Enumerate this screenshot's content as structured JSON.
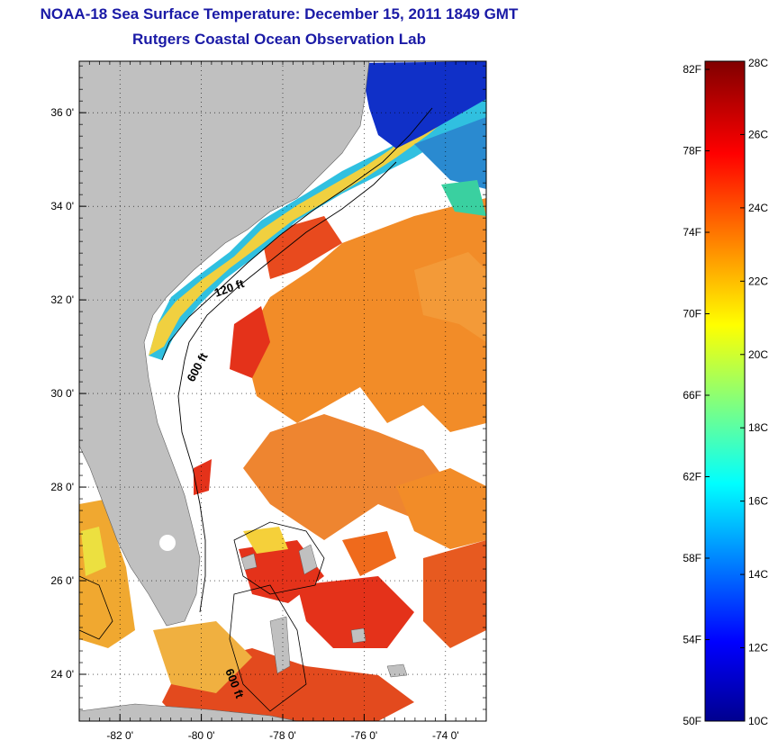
{
  "header": {
    "title_line1": "NOAA-18 Sea Surface Temperature:  December 15, 2011 1849 GMT",
    "title_line2": "Rutgers Coastal Ocean Observation Lab"
  },
  "map": {
    "lat_range": [
      23,
      37.1
    ],
    "lon_range": [
      -83,
      -73
    ],
    "lat_ticks": [
      "24 0'",
      "26 0'",
      "28 0'",
      "30 0'",
      "32 0'",
      "34 0'",
      "36 0'"
    ],
    "lat_values": [
      24,
      26,
      28,
      30,
      32,
      34,
      36
    ],
    "lon_ticks": [
      "-82 0'",
      "-80 0'",
      "-78 0'",
      "-76 0'",
      "-74 0'"
    ],
    "lon_values": [
      -82,
      -80,
      -78,
      -76,
      -74
    ],
    "depth_labels": [
      "120 ft",
      "600 ft",
      "600 ft"
    ],
    "land_color": "#c0c0c0",
    "cloud_color": "#ffffff"
  },
  "colorbar": {
    "fahrenheit_labels": [
      "82F",
      "78F",
      "74F",
      "70F",
      "66F",
      "62F",
      "58F",
      "54F",
      "50F"
    ],
    "fahrenheit_values": [
      82,
      78,
      74,
      70,
      66,
      62,
      58,
      54,
      50
    ],
    "celsius_labels": [
      "28C",
      "26C",
      "24C",
      "22C",
      "20C",
      "18C",
      "16C",
      "14C",
      "12C",
      "10C"
    ],
    "celsius_values": [
      28,
      26,
      24,
      22,
      20,
      18,
      16,
      14,
      12,
      10
    ],
    "range_c": [
      10,
      28
    ]
  }
}
